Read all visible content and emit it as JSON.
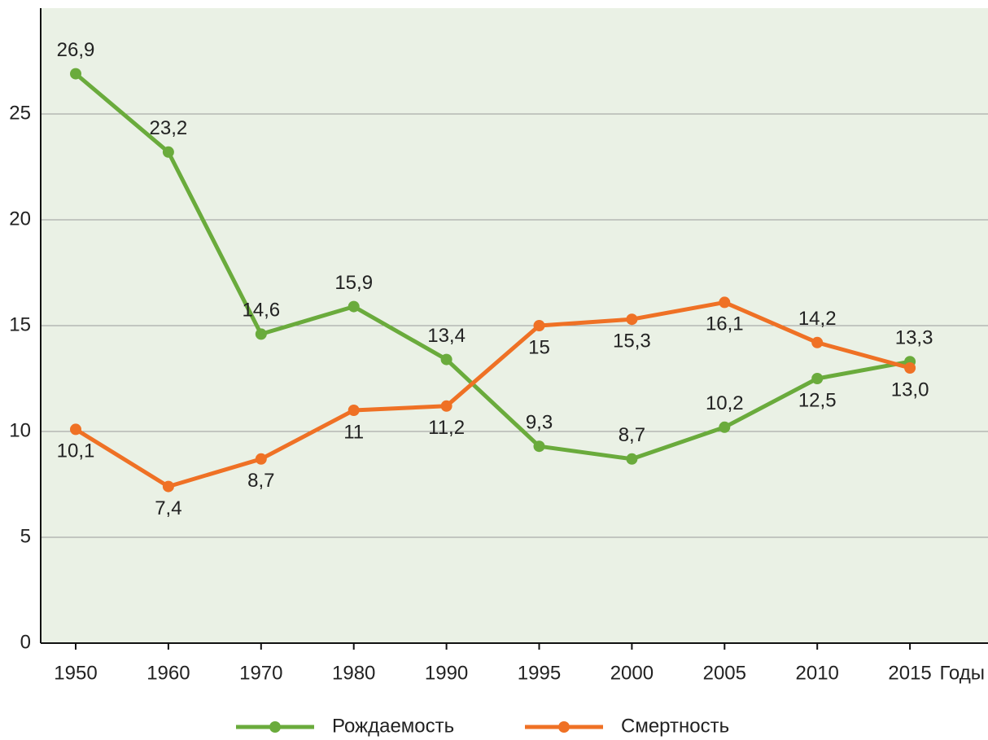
{
  "chart_data": {
    "type": "line",
    "x_label": "Годы",
    "categories": [
      "1950",
      "1960",
      "1970",
      "1980",
      "1990",
      "1995",
      "2000",
      "2005",
      "2010",
      "2015"
    ],
    "series": [
      {
        "name": "Рождаемость",
        "color": "#6aab3c",
        "label_color": "#4e9a3c",
        "values": [
          26.9,
          23.2,
          14.6,
          15.9,
          13.4,
          9.3,
          8.7,
          10.2,
          12.5,
          13.3
        ],
        "value_labels": [
          "26,9",
          "23,2",
          "14,6",
          "15,9",
          "13,4",
          "9,3",
          "8,7",
          "10,2",
          "12,5",
          "13,3"
        ]
      },
      {
        "name": "Смертность",
        "color": "#ef7125",
        "label_color": "#e0652a",
        "values": [
          10.1,
          7.4,
          8.7,
          11,
          11.2,
          15,
          15.3,
          16.1,
          14.2,
          13.0
        ],
        "value_labels": [
          "10,1",
          "7,4",
          "8,7",
          "11",
          "11,2",
          "15",
          "15,3",
          "16,1",
          "14,2",
          "13,0"
        ]
      }
    ],
    "ylim": [
      0,
      30
    ],
    "yticks": [
      0,
      5,
      10,
      15,
      20,
      25
    ],
    "grid": true,
    "legend": "bottom"
  }
}
